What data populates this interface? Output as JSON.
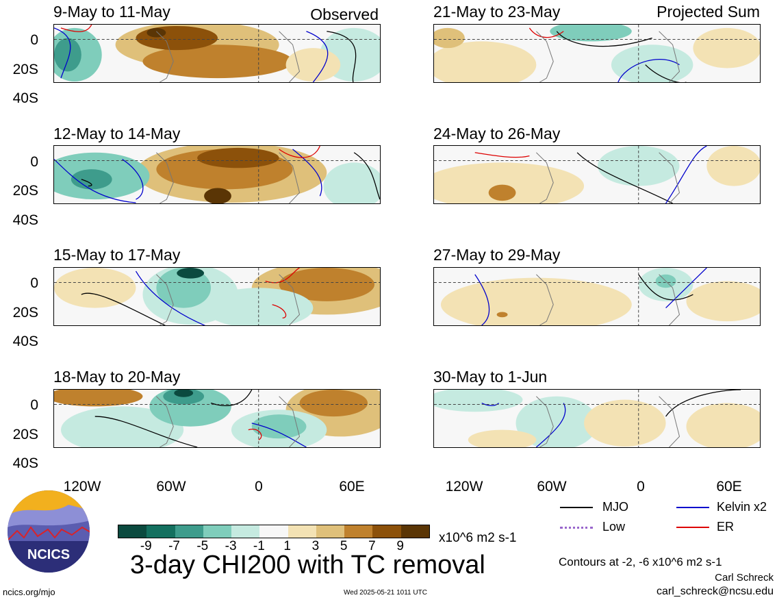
{
  "panels_left": [
    {
      "date_range": "9-May to 11-May",
      "tag": "Observed"
    },
    {
      "date_range": "12-May to 14-May",
      "tag": ""
    },
    {
      "date_range": "15-May to 17-May",
      "tag": ""
    },
    {
      "date_range": "18-May to 20-May",
      "tag": ""
    }
  ],
  "panels_right": [
    {
      "date_range": "21-May to 23-May",
      "tag": "Projected Sum"
    },
    {
      "date_range": "24-May to 26-May",
      "tag": ""
    },
    {
      "date_range": "27-May to 29-May",
      "tag": ""
    },
    {
      "date_range": "30-May to 1-Jun",
      "tag": ""
    }
  ],
  "lat_labels": [
    "0",
    "20S",
    "40S"
  ],
  "lon_labels": [
    "120W",
    "60W",
    "0",
    "60E"
  ],
  "colorbar": {
    "colors": [
      "#0b4a3f",
      "#14705f",
      "#3e9c8c",
      "#7fcdbb",
      "#c5eae0",
      "#f7f7f7",
      "#f3e2b4",
      "#dfc07a",
      "#bf812d",
      "#8c510a",
      "#5a3505"
    ],
    "ticks": [
      "-9",
      "-7",
      "-5",
      "-3",
      "-1",
      "1",
      "3",
      "5",
      "7",
      "9"
    ],
    "units": "x10^6 m2 s-1"
  },
  "title": "3-day CHI200 with TC removal",
  "legend": [
    {
      "label": "MJO",
      "color": "#000000"
    },
    {
      "label": "Kelvin x2",
      "color": "#0000cc"
    },
    {
      "label": "Low",
      "color": "#9966cc"
    },
    {
      "label": "ER",
      "color": "#dd0000"
    }
  ],
  "contour_note": "Contours at -2, -6 x10^6 m2 s-1",
  "author": "Carl Schreck",
  "email": "carl_schreck@ncsu.edu",
  "website": "ncics.org/mjo",
  "timestamp": "Wed 2025-05-21 1011 UTC",
  "logo_text": "NCICS"
}
